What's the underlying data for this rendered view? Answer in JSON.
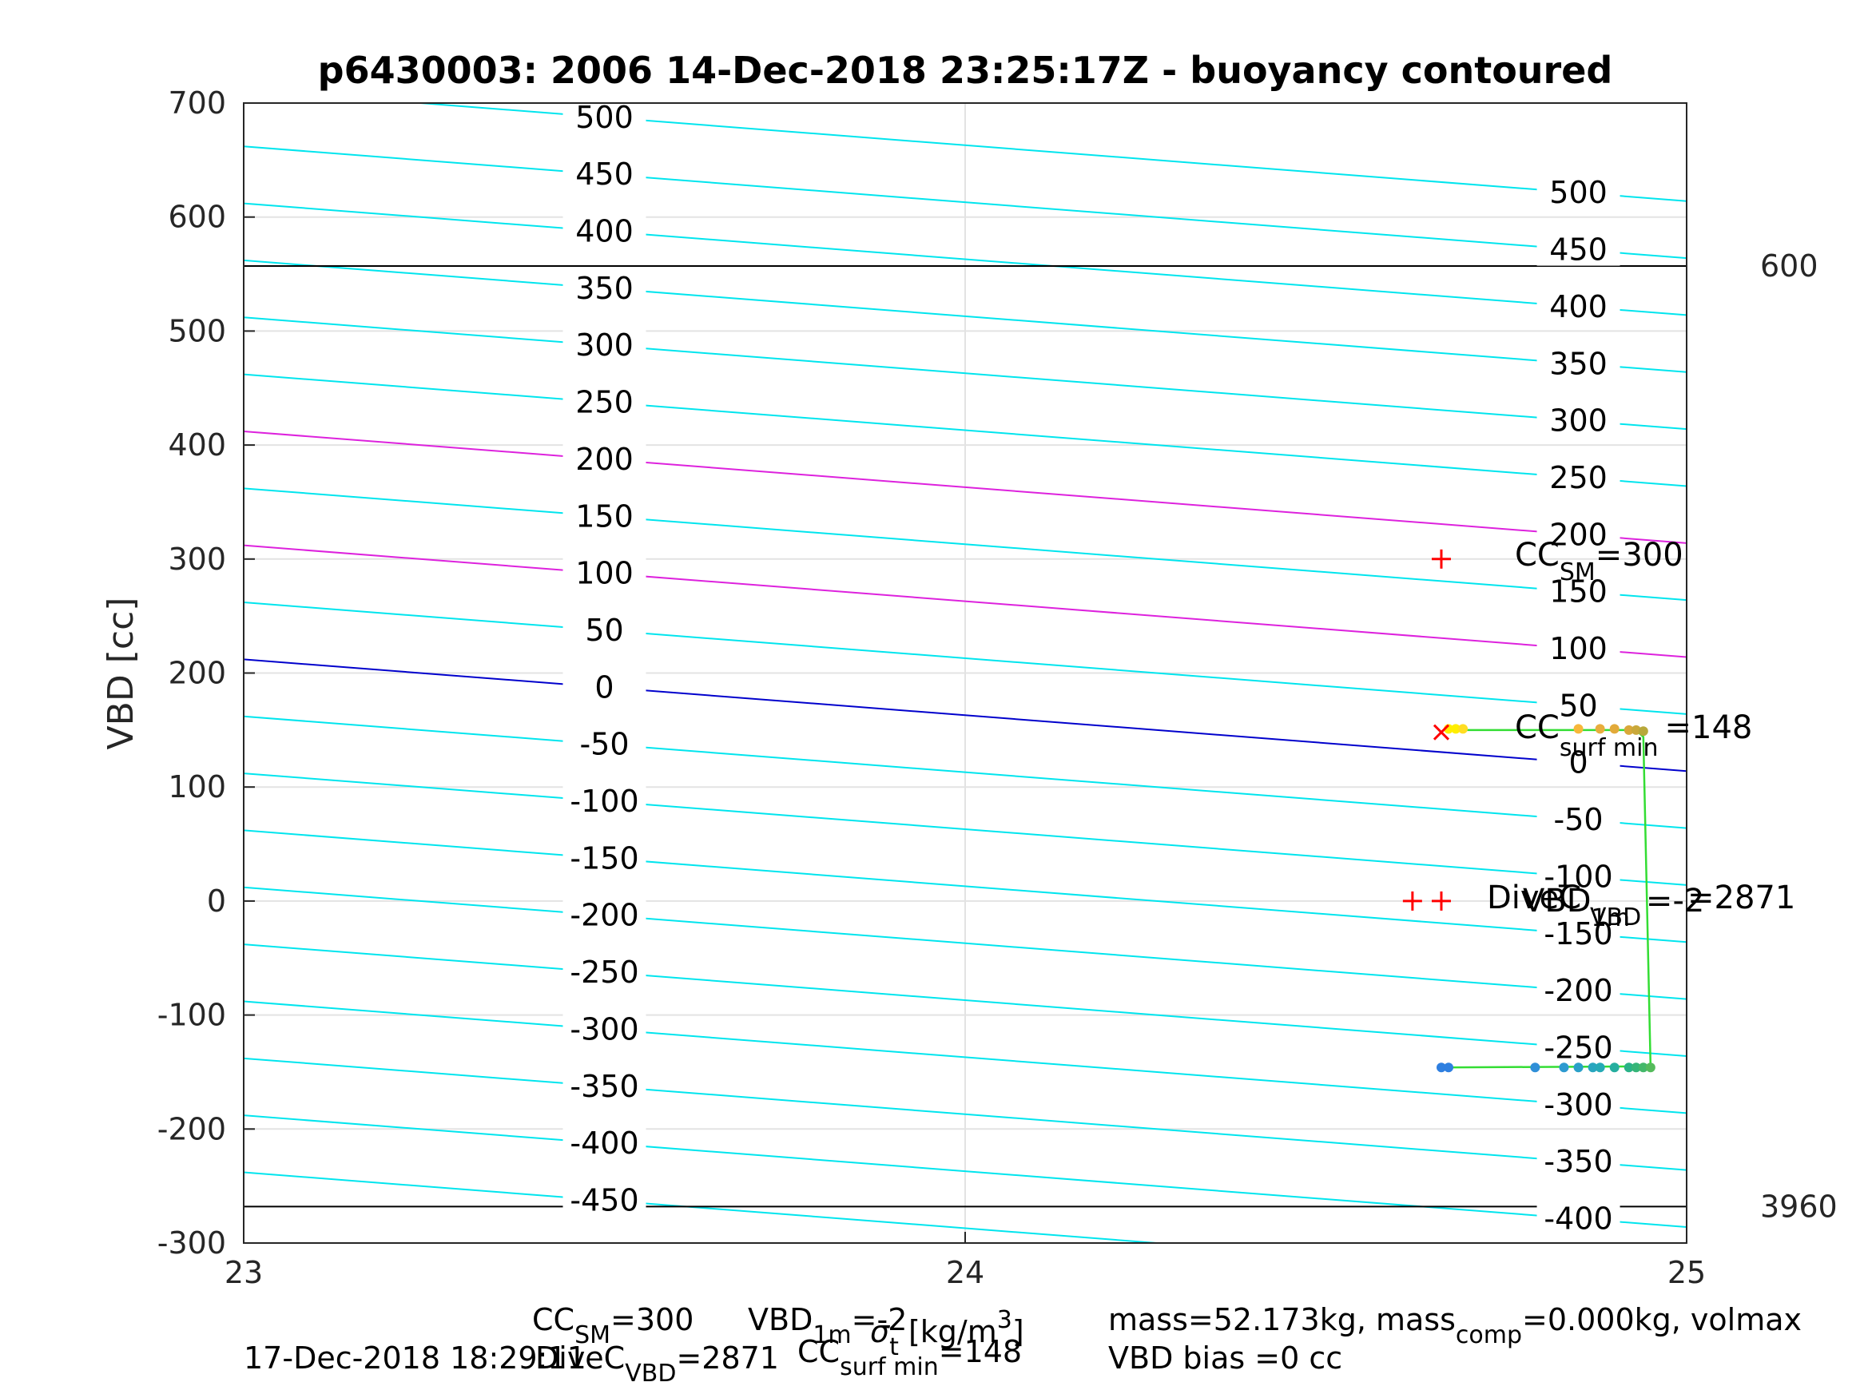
{
  "chart_data": {
    "type": "line",
    "title": "p6430003:  2006 14-Dec-2018 23:25:17Z - buoyancy contoured",
    "ylabel": "VBD [cc]",
    "xlabel": {
      "sym": "σ",
      "sub": "t",
      "unit": " [kg/m",
      "sup": "3",
      "close": "]"
    },
    "xlim": [
      23,
      25
    ],
    "ylim": [
      -300,
      700
    ],
    "x_ticks": [
      23,
      24,
      25
    ],
    "y_ticks": [
      -300,
      -200,
      -100,
      0,
      100,
      200,
      300,
      400,
      500,
      600,
      700
    ],
    "grid": true,
    "colors": {
      "contour": "#00e5ee",
      "contour_highlight": "#dd22dd",
      "contour_zero": "#0000cc",
      "limit_line": "#000000",
      "marker": "#ff0000",
      "trace": "#33dd33"
    },
    "contours": {
      "levels": [
        -450,
        -400,
        -350,
        -300,
        -250,
        -200,
        -150,
        -100,
        -50,
        0,
        50,
        100,
        150,
        200,
        250,
        300,
        350,
        400,
        450,
        500
      ],
      "highlight_levels": [
        100,
        200
      ],
      "zero_level": 0,
      "vbd_at_sigma_23": {
        "zero": 212
      },
      "slope_vbd_per_sigma": -49,
      "spacing_vbd_per_50": 50,
      "label_sigma_left": 23.5,
      "label_sigma_right": 24.85
    },
    "horizontal_lines": [
      {
        "y": 557,
        "label": "600"
      },
      {
        "y": -268,
        "label": "3960"
      }
    ],
    "markers": [
      {
        "symbol": "+",
        "x": 24.66,
        "y": 300
      },
      {
        "symbol": "x",
        "x": 24.66,
        "y": 148
      },
      {
        "symbol": "+",
        "x": 24.62,
        "y": 0
      },
      {
        "symbol": "+",
        "x": 24.66,
        "y": 0
      }
    ],
    "trace": [
      {
        "x": 24.67,
        "y": 150
      },
      {
        "x": 24.93,
        "y": 150
      },
      {
        "x": 24.94,
        "y": 144
      },
      {
        "x": 24.95,
        "y": -145
      },
      {
        "x": 24.66,
        "y": -146
      }
    ],
    "dots": [
      {
        "x": 24.67,
        "y": 151,
        "c": "#ffee00"
      },
      {
        "x": 24.68,
        "y": 151,
        "c": "#ffee00"
      },
      {
        "x": 24.69,
        "y": 151,
        "c": "#ffdd22"
      },
      {
        "x": 24.85,
        "y": 151,
        "c": "#f7b73a"
      },
      {
        "x": 24.88,
        "y": 151,
        "c": "#e8ad3d"
      },
      {
        "x": 24.9,
        "y": 151,
        "c": "#e2aa3a"
      },
      {
        "x": 24.92,
        "y": 150,
        "c": "#d9a83a"
      },
      {
        "x": 24.93,
        "y": 150,
        "c": "#c9a83a"
      },
      {
        "x": 24.94,
        "y": 149,
        "c": "#b8a83a"
      },
      {
        "x": 24.66,
        "y": -146,
        "c": "#2e7fe0"
      },
      {
        "x": 24.67,
        "y": -146,
        "c": "#2e7fe0"
      },
      {
        "x": 24.79,
        "y": -146,
        "c": "#2f8fd8"
      },
      {
        "x": 24.83,
        "y": -146,
        "c": "#2d9ad0"
      },
      {
        "x": 24.85,
        "y": -146,
        "c": "#2aa0c8"
      },
      {
        "x": 24.87,
        "y": -146,
        "c": "#28a6bf"
      },
      {
        "x": 24.88,
        "y": -146,
        "c": "#26aab6"
      },
      {
        "x": 24.9,
        "y": -146,
        "c": "#25ae9f"
      },
      {
        "x": 24.92,
        "y": -146,
        "c": "#2ab288"
      },
      {
        "x": 24.93,
        "y": -146,
        "c": "#36b578"
      },
      {
        "x": 24.94,
        "y": -146,
        "c": "#44b86a"
      },
      {
        "x": 24.95,
        "y": -146,
        "c": "#55bb5c"
      }
    ],
    "annotations": {
      "cc_sm": {
        "main": "CC",
        "sub": "SM",
        "val": "=300"
      },
      "cc_surf": {
        "main": "CC",
        "sub": "surf min",
        "val": "=148"
      },
      "dive": "DiveC",
      "vbd": {
        "main": "VBD",
        "sub": "1m",
        "val": "=-2"
      },
      "dive_val": "=2871",
      "vbd_sub": "VBD"
    }
  },
  "footer": {
    "date": "17-Dec-2018 18:29:11",
    "cc_sm": {
      "main": "CC",
      "sub": "SM",
      "val": "=300"
    },
    "vbd_1m": {
      "main": "VBD",
      "sub": "1m",
      "val": "=-2"
    },
    "dive_c": {
      "main": "DiveC",
      "sub": "VBD",
      "val": "=2871"
    },
    "cc_surf": {
      "main": "CC",
      "sub": "surf min",
      "val": "=148"
    },
    "mass": {
      "a": "mass=52.173kg, mass",
      "sub": "comp",
      "b": "=0.000kg, volmax"
    },
    "bias": "VBD bias =0 cc"
  }
}
